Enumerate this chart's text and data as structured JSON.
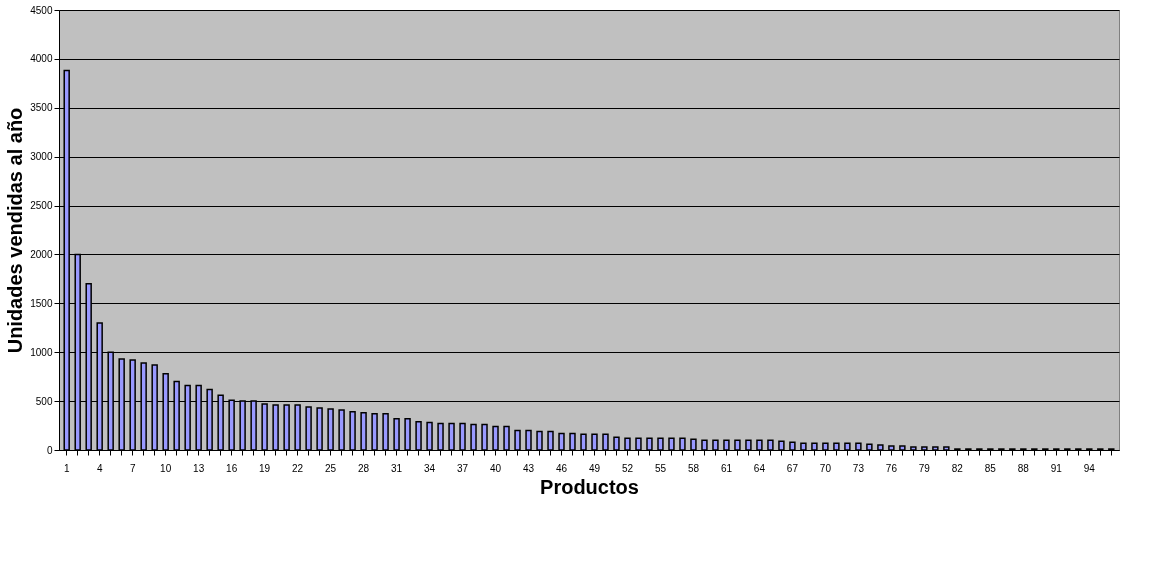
{
  "chart_data": {
    "type": "bar",
    "xlabel": "Productos",
    "ylabel": "Unidades vendidas al año",
    "categories": [
      "1",
      null,
      null,
      "4",
      null,
      null,
      "7",
      null,
      null,
      "10",
      null,
      null,
      "13",
      null,
      null,
      "16",
      null,
      null,
      "19",
      null,
      null,
      "22",
      null,
      null,
      "25",
      null,
      null,
      "28",
      null,
      null,
      "31",
      null,
      null,
      "34",
      null,
      null,
      "37",
      null,
      null,
      "40",
      null,
      null,
      "43",
      null,
      null,
      "46",
      null,
      null,
      "49",
      null,
      null,
      "52",
      null,
      null,
      "55",
      null,
      null,
      "58",
      null,
      null,
      "61",
      null,
      null,
      "64",
      null,
      null,
      "67",
      null,
      null,
      "70",
      null,
      null,
      "73",
      null,
      null,
      "76",
      null,
      null,
      "79",
      null,
      null,
      "82",
      null,
      null,
      "85",
      null,
      null,
      "88",
      null,
      null,
      "91",
      null,
      null,
      "94",
      null,
      null
    ],
    "values": [
      3880,
      2000,
      1700,
      1300,
      1000,
      930,
      920,
      890,
      870,
      780,
      700,
      660,
      660,
      620,
      560,
      510,
      500,
      500,
      470,
      460,
      460,
      460,
      440,
      430,
      420,
      410,
      390,
      380,
      370,
      370,
      320,
      320,
      290,
      280,
      270,
      270,
      270,
      260,
      260,
      240,
      240,
      200,
      200,
      190,
      190,
      170,
      170,
      160,
      160,
      160,
      130,
      120,
      120,
      120,
      120,
      120,
      120,
      110,
      100,
      100,
      100,
      100,
      100,
      100,
      100,
      90,
      80,
      70,
      70,
      70,
      70,
      70,
      70,
      60,
      50,
      40,
      40,
      30,
      30,
      30,
      30,
      10,
      10,
      10,
      10,
      10,
      10,
      10,
      10,
      10,
      10,
      10,
      10,
      10,
      10,
      10
    ],
    "color": "#9999ff",
    "ylim": [
      0,
      4500
    ],
    "yticks": [
      0,
      500,
      1000,
      1500,
      2000,
      2500,
      3000,
      3500,
      4000,
      4500
    ],
    "grid": "y"
  }
}
